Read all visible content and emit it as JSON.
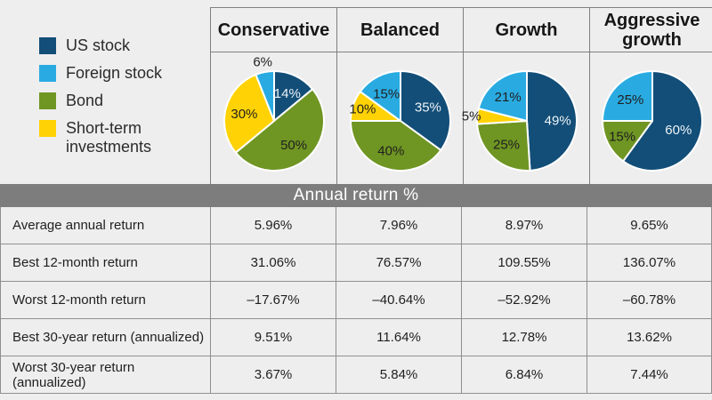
{
  "colors": {
    "us_stock": "#124e78",
    "foreign_stock": "#29abe2",
    "bond": "#6f9523",
    "short_term": "#ffd205",
    "band_bg": "#7d7d7d",
    "band_text": "#ffffff"
  },
  "legend": {
    "items": [
      {
        "key": "us_stock",
        "label": "US stock"
      },
      {
        "key": "foreign_stock",
        "label": "Foreign stock"
      },
      {
        "key": "bond",
        "label": "Bond"
      },
      {
        "key": "short_term",
        "label": "Short-term investments"
      }
    ]
  },
  "band": {
    "title": "Annual return %"
  },
  "plans": [
    {
      "name": "Conservative",
      "slices": [
        {
          "key": "us_stock",
          "pct": 14
        },
        {
          "key": "bond",
          "pct": 50
        },
        {
          "key": "short_term",
          "pct": 30
        },
        {
          "key": "foreign_stock",
          "pct": 6,
          "outside": true,
          "label_r": 1.22
        }
      ]
    },
    {
      "name": "Balanced",
      "slices": [
        {
          "key": "us_stock",
          "pct": 35
        },
        {
          "key": "bond",
          "pct": 40
        },
        {
          "key": "short_term",
          "pct": 10,
          "label_r": 0.8
        },
        {
          "key": "foreign_stock",
          "pct": 15
        }
      ]
    },
    {
      "name": "Growth",
      "slices": [
        {
          "key": "us_stock",
          "pct": 49
        },
        {
          "key": "bond",
          "pct": 25
        },
        {
          "key": "short_term",
          "pct": 5,
          "outside": true,
          "label_r": 1.12
        },
        {
          "key": "foreign_stock",
          "pct": 21
        }
      ]
    },
    {
      "name": "Aggressive growth",
      "slices": [
        {
          "key": "us_stock",
          "pct": 60,
          "label_r": 0.55
        },
        {
          "key": "bond",
          "pct": 15,
          "label_r": 0.68
        },
        {
          "key": "foreign_stock",
          "pct": 25
        }
      ]
    }
  ],
  "table": {
    "rows": [
      {
        "label": "Average annual return",
        "values": [
          "5.96%",
          "7.96%",
          "8.97%",
          "9.65%"
        ]
      },
      {
        "label": "Best 12-month return",
        "values": [
          "31.06%",
          "76.57%",
          "109.55%",
          "136.07%"
        ]
      },
      {
        "label": "Worst 12-month return",
        "values": [
          "–17.67%",
          "–40.64%",
          "–52.92%",
          "–60.78%"
        ]
      },
      {
        "label": "Best 30-year return (annualized)",
        "values": [
          "9.51%",
          "11.64%",
          "12.78%",
          "13.62%"
        ]
      },
      {
        "label": "Worst 30-year return (annualized)",
        "values": [
          "3.67%",
          "5.84%",
          "6.84%",
          "7.44%"
        ]
      }
    ]
  },
  "chart_data": [
    {
      "type": "pie",
      "title": "Conservative",
      "labels": [
        "US stock",
        "Bond",
        "Short-term investments",
        "Foreign stock"
      ],
      "values": [
        14,
        50,
        30,
        6
      ]
    },
    {
      "type": "pie",
      "title": "Balanced",
      "labels": [
        "US stock",
        "Bond",
        "Short-term investments",
        "Foreign stock"
      ],
      "values": [
        35,
        40,
        10,
        15
      ]
    },
    {
      "type": "pie",
      "title": "Growth",
      "labels": [
        "US stock",
        "Bond",
        "Short-term investments",
        "Foreign stock"
      ],
      "values": [
        49,
        25,
        5,
        21
      ]
    },
    {
      "type": "pie",
      "title": "Aggressive growth",
      "labels": [
        "US stock",
        "Bond",
        "Foreign stock"
      ],
      "values": [
        60,
        15,
        25
      ]
    },
    {
      "type": "table",
      "title": "Annual return %",
      "columns": [
        "",
        "Conservative",
        "Balanced",
        "Growth",
        "Aggressive growth"
      ],
      "rows": [
        [
          "Average annual return",
          "5.96%",
          "7.96%",
          "8.97%",
          "9.65%"
        ],
        [
          "Best 12-month return",
          "31.06%",
          "76.57%",
          "109.55%",
          "136.07%"
        ],
        [
          "Worst 12-month return",
          "–17.67%",
          "–40.64%",
          "–52.92%",
          "–60.78%"
        ],
        [
          "Best 30-year return (annualized)",
          "9.51%",
          "11.64%",
          "12.78%",
          "13.62%"
        ],
        [
          "Worst 30-year return (annualized)",
          "3.67%",
          "5.84%",
          "6.84%",
          "7.44%"
        ]
      ]
    }
  ]
}
